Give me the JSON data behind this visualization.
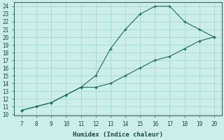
{
  "xlabel": "Humidex (Indice chaleur)",
  "bg_color": "#cceee8",
  "grid_color": "#aad8d0",
  "line_color": "#1a6b60",
  "line1_x": [
    7,
    8,
    9,
    10,
    11,
    12,
    13,
    14,
    15,
    16,
    17,
    18,
    19,
    20
  ],
  "line1_y": [
    10.5,
    11.0,
    11.5,
    12.5,
    13.5,
    15.0,
    18.5,
    21.0,
    23.0,
    24.0,
    24.0,
    22.0,
    21.0,
    20.0
  ],
  "line2_x": [
    7,
    8,
    9,
    10,
    11,
    12,
    13,
    14,
    15,
    16,
    17,
    18,
    19,
    20
  ],
  "line2_y": [
    10.5,
    11.0,
    11.5,
    12.5,
    13.5,
    13.5,
    14.0,
    15.0,
    16.0,
    17.0,
    17.5,
    18.5,
    19.5,
    20.0
  ],
  "xlim": [
    6.5,
    20.5
  ],
  "ylim": [
    9.8,
    24.5
  ],
  "xticks": [
    7,
    8,
    9,
    10,
    11,
    12,
    13,
    14,
    15,
    16,
    17,
    18,
    19,
    20
  ],
  "yticks": [
    10,
    11,
    12,
    13,
    14,
    15,
    16,
    17,
    18,
    19,
    20,
    21,
    22,
    23,
    24
  ],
  "tick_fontsize": 5.5,
  "xlabel_fontsize": 6.5
}
